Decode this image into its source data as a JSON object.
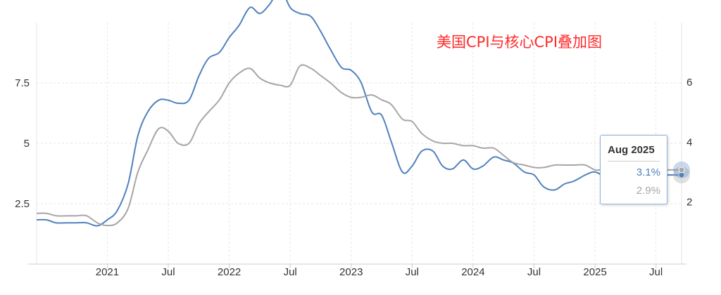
{
  "title": "美国CPI与核心CPI叠加图",
  "colors": {
    "cpi": "#4f81bd",
    "core": "#a6a6a6",
    "title": "#ff2a2a",
    "grid": "#e6e6e6"
  },
  "tooltip": {
    "date": "Aug 2025",
    "value1": "3.1%",
    "value2": "2.9%"
  },
  "chart_data": {
    "type": "line",
    "title": "美国CPI与核心CPI叠加图",
    "grid": true,
    "x_ticks": [
      {
        "t": 2021.0,
        "label": "2021"
      },
      {
        "t": 2021.5,
        "label": "Jul"
      },
      {
        "t": 2022.0,
        "label": "2022"
      },
      {
        "t": 2022.5,
        "label": "Jul"
      },
      {
        "t": 2023.0,
        "label": "2023"
      },
      {
        "t": 2023.5,
        "label": "Jul"
      },
      {
        "t": 2024.0,
        "label": "2024"
      },
      {
        "t": 2024.5,
        "label": "Jul"
      },
      {
        "t": 2025.0,
        "label": "2025"
      },
      {
        "t": 2025.5,
        "label": "Jul"
      }
    ],
    "x_range": [
      2020.42,
      2025.71
    ],
    "y_left": {
      "ticks": [
        2.5,
        5,
        7.5
      ],
      "tick_labels": [
        "2.5",
        "5",
        "7.5"
      ],
      "range": [
        0,
        10
      ]
    },
    "y_right": {
      "ticks": [
        2,
        4,
        6
      ],
      "tick_labels": [
        "2",
        "4",
        "6"
      ],
      "range": [
        -0.08,
        8.0
      ]
    },
    "series": [
      {
        "key": "cpi",
        "axis": "right",
        "points": [
          [
            2020.42,
            1.4
          ],
          [
            2020.5,
            1.4
          ],
          [
            2020.58,
            1.3
          ],
          [
            2020.67,
            1.3
          ],
          [
            2020.75,
            1.3
          ],
          [
            2020.83,
            1.3
          ],
          [
            2020.92,
            1.2
          ],
          [
            2021.0,
            1.4
          ],
          [
            2021.08,
            1.7
          ],
          [
            2021.17,
            2.6
          ],
          [
            2021.25,
            4.2
          ],
          [
            2021.33,
            5.0
          ],
          [
            2021.42,
            5.4
          ],
          [
            2021.5,
            5.4
          ],
          [
            2021.58,
            5.3
          ],
          [
            2021.67,
            5.4
          ],
          [
            2021.75,
            6.2
          ],
          [
            2021.83,
            6.8
          ],
          [
            2021.92,
            7.0
          ],
          [
            2022.0,
            7.5
          ],
          [
            2022.08,
            7.9
          ],
          [
            2022.17,
            8.5
          ],
          [
            2022.25,
            8.3
          ],
          [
            2022.33,
            8.6
          ],
          [
            2022.42,
            9.1
          ],
          [
            2022.5,
            8.5
          ],
          [
            2022.58,
            8.3
          ],
          [
            2022.67,
            8.2
          ],
          [
            2022.75,
            7.7
          ],
          [
            2022.83,
            7.1
          ],
          [
            2022.92,
            6.5
          ],
          [
            2023.0,
            6.4
          ],
          [
            2023.08,
            6.0
          ],
          [
            2023.17,
            5.0
          ],
          [
            2023.25,
            4.9
          ],
          [
            2023.33,
            4.0
          ],
          [
            2023.42,
            3.0
          ],
          [
            2023.5,
            3.2
          ],
          [
            2023.58,
            3.7
          ],
          [
            2023.67,
            3.7
          ],
          [
            2023.75,
            3.2
          ],
          [
            2023.83,
            3.1
          ],
          [
            2023.92,
            3.4
          ],
          [
            2024.0,
            3.1
          ],
          [
            2024.08,
            3.2
          ],
          [
            2024.17,
            3.5
          ],
          [
            2024.25,
            3.4
          ],
          [
            2024.33,
            3.3
          ],
          [
            2024.42,
            3.0
          ],
          [
            2024.5,
            2.9
          ],
          [
            2024.58,
            2.5
          ],
          [
            2024.67,
            2.4
          ],
          [
            2024.75,
            2.6
          ],
          [
            2024.83,
            2.7
          ],
          [
            2024.92,
            2.9
          ],
          [
            2025.0,
            3.0
          ],
          [
            2025.08,
            2.8
          ],
          [
            2025.17,
            2.4
          ],
          [
            2025.25,
            2.3
          ],
          [
            2025.33,
            2.4
          ],
          [
            2025.42,
            2.7
          ],
          [
            2025.5,
            2.7
          ],
          [
            2025.58,
            2.9
          ]
        ]
      },
      {
        "key": "core",
        "axis": "left",
        "points": [
          [
            2020.42,
            2.1
          ],
          [
            2020.5,
            2.1
          ],
          [
            2020.58,
            2.0
          ],
          [
            2020.67,
            2.0
          ],
          [
            2020.75,
            2.0
          ],
          [
            2020.83,
            2.0
          ],
          [
            2020.92,
            1.7
          ],
          [
            2021.0,
            1.6
          ],
          [
            2021.08,
            1.7
          ],
          [
            2021.17,
            2.3
          ],
          [
            2021.25,
            3.8
          ],
          [
            2021.33,
            4.7
          ],
          [
            2021.42,
            5.6
          ],
          [
            2021.5,
            5.5
          ],
          [
            2021.58,
            5.0
          ],
          [
            2021.67,
            5.0
          ],
          [
            2021.75,
            5.8
          ],
          [
            2021.83,
            6.3
          ],
          [
            2021.92,
            6.8
          ],
          [
            2022.0,
            7.5
          ],
          [
            2022.08,
            7.9
          ],
          [
            2022.17,
            8.1
          ],
          [
            2022.25,
            7.7
          ],
          [
            2022.33,
            7.5
          ],
          [
            2022.42,
            7.4
          ],
          [
            2022.5,
            7.4
          ],
          [
            2022.58,
            8.2
          ],
          [
            2022.67,
            8.1
          ],
          [
            2022.75,
            7.8
          ],
          [
            2022.83,
            7.5
          ],
          [
            2022.92,
            7.1
          ],
          [
            2023.0,
            6.9
          ],
          [
            2023.08,
            6.9
          ],
          [
            2023.17,
            7.0
          ],
          [
            2023.25,
            6.8
          ],
          [
            2023.33,
            6.6
          ],
          [
            2023.42,
            6.0
          ],
          [
            2023.5,
            5.9
          ],
          [
            2023.58,
            5.4
          ],
          [
            2023.67,
            5.1
          ],
          [
            2023.75,
            5.0
          ],
          [
            2023.83,
            5.0
          ],
          [
            2023.92,
            4.9
          ],
          [
            2024.0,
            4.9
          ],
          [
            2024.08,
            4.8
          ],
          [
            2024.17,
            4.8
          ],
          [
            2024.25,
            4.5
          ],
          [
            2024.33,
            4.2
          ],
          [
            2024.42,
            4.1
          ],
          [
            2024.5,
            4.0
          ],
          [
            2024.58,
            4.0
          ],
          [
            2024.67,
            4.1
          ],
          [
            2024.75,
            4.1
          ],
          [
            2024.83,
            4.1
          ],
          [
            2024.92,
            4.1
          ],
          [
            2025.0,
            3.9
          ],
          [
            2025.08,
            3.9
          ],
          [
            2025.17,
            3.7
          ],
          [
            2025.25,
            3.6
          ],
          [
            2025.33,
            3.7
          ],
          [
            2025.42,
            3.8
          ],
          [
            2025.5,
            3.8
          ],
          [
            2025.58,
            3.9
          ]
        ]
      }
    ]
  }
}
